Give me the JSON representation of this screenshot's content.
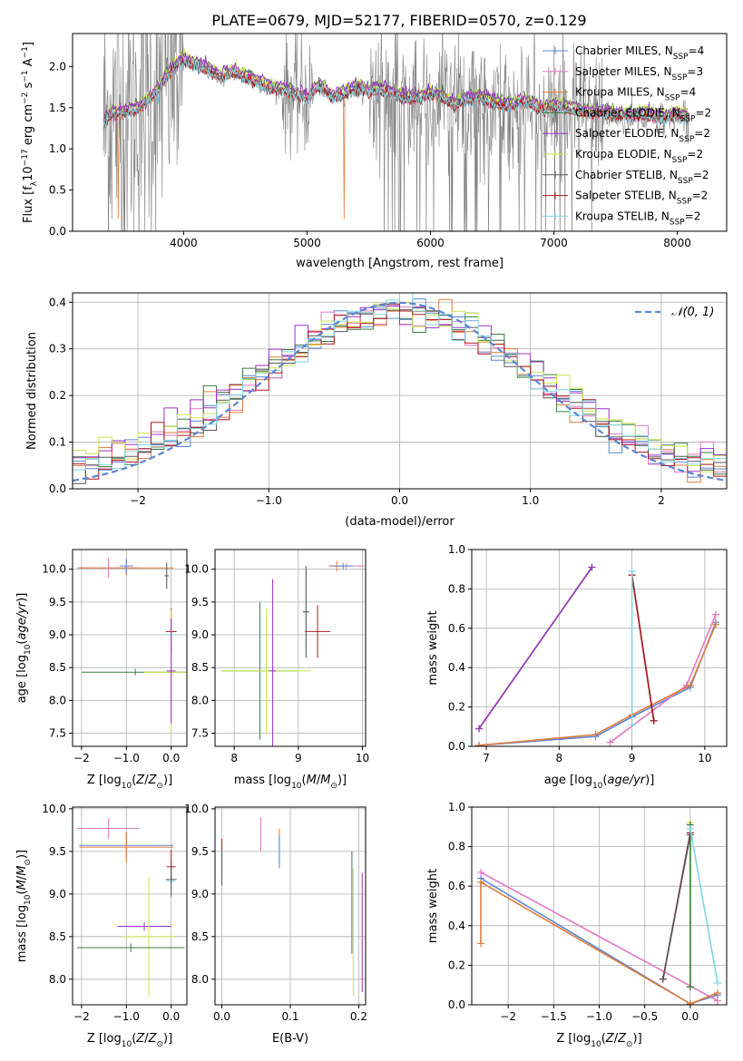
{
  "title": "PLATE=0679, MJD=52177, FIBERID=0570, z=0.129",
  "colors": {
    "chabrier_miles": "#5b86d6",
    "salpeter_miles": "#e377c2",
    "kroupa_miles": "#e07b39",
    "chabrier_elodie": "#3a7d44",
    "salpeter_elodie": "#9b30c8",
    "kroupa_elodie": "#c8e84a",
    "chabrier_stelib": "#555555",
    "salpeter_stelib": "#b0161e",
    "kroupa_stelib": "#7fd8e0",
    "data": "#808080",
    "normal": "#5b86d6"
  },
  "chart_data": [
    {
      "id": "spectrum",
      "type": "line",
      "xlabel": "wavelength [Angstrom, rest frame]",
      "ylabel": "Flux [f_λ 10^-17 erg cm^-2 s^-1 A^-1]",
      "xlim": [
        3100,
        8400
      ],
      "ylim": [
        0,
        2.4
      ],
      "xticks": [
        4000,
        5000,
        6000,
        7000,
        8000
      ],
      "yticks": [
        0.0,
        0.5,
        1.0,
        1.5,
        2.0
      ],
      "grid": false,
      "legend_loc": "upper right",
      "legend": [
        {
          "key": "chabrier_miles",
          "label": "Chabrier MILES, N",
          "sub": "SSP",
          "suffix": "=4"
        },
        {
          "key": "salpeter_miles",
          "label": "Salpeter MILES, N",
          "sub": "SSP",
          "suffix": "=3"
        },
        {
          "key": "kroupa_miles",
          "label": "Kroupa MILES, N",
          "sub": "SSP",
          "suffix": "=4"
        },
        {
          "key": "chabrier_elodie",
          "label": "Chabrier ELODIE, N",
          "sub": "SSP",
          "suffix": "=2"
        },
        {
          "key": "salpeter_elodie",
          "label": "Salpeter ELODIE, N",
          "sub": "SSP",
          "suffix": "=2"
        },
        {
          "key": "kroupa_elodie",
          "label": "Kroupa ELODIE, N",
          "sub": "SSP",
          "suffix": "=2"
        },
        {
          "key": "chabrier_stelib",
          "label": "Chabrier STELIB, N",
          "sub": "SSP",
          "suffix": "=2"
        },
        {
          "key": "salpeter_stelib",
          "label": "Salpeter STELIB, N",
          "sub": "SSP",
          "suffix": "=2"
        },
        {
          "key": "kroupa_stelib",
          "label": "Kroupa STELIB, N",
          "sub": "SSP",
          "suffix": "=2"
        }
      ],
      "continuum": {
        "x": [
          3350,
          3400,
          3500,
          3600,
          3700,
          3800,
          3900,
          4000,
          4100,
          4200,
          4300,
          4400,
          4500,
          4600,
          4700,
          4800,
          4900,
          5000,
          5100,
          5200,
          5300,
          5400,
          5500,
          5600,
          5700,
          5800,
          5900,
          6000,
          6100,
          6200,
          6300,
          6400,
          6500,
          6600,
          6700,
          6800,
          6900,
          7000,
          7100,
          7200,
          7300,
          7400,
          7500,
          7600,
          7700,
          7800,
          7900,
          8000,
          8100
        ],
        "y": [
          1.25,
          1.4,
          1.42,
          1.45,
          1.55,
          1.7,
          1.95,
          2.05,
          2.0,
          1.95,
          1.85,
          1.92,
          1.85,
          1.8,
          1.72,
          1.7,
          1.65,
          1.6,
          1.75,
          1.6,
          1.65,
          1.72,
          1.68,
          1.7,
          1.65,
          1.6,
          1.6,
          1.65,
          1.6,
          1.5,
          1.58,
          1.6,
          1.55,
          1.5,
          1.52,
          1.55,
          1.45,
          1.5,
          1.48,
          1.45,
          1.42,
          1.42,
          1.4,
          1.38,
          1.4,
          1.38,
          1.35,
          1.4,
          1.35
        ]
      }
    },
    {
      "id": "residuals",
      "type": "line",
      "xlabel": "(data-model)/error",
      "ylabel": "Normed distribution",
      "xlim": [
        -2.5,
        2.5
      ],
      "ylim": [
        0,
        0.42
      ],
      "xticks": [
        -2,
        -1,
        0,
        1,
        2
      ],
      "yticks": [
        0.0,
        0.1,
        0.2,
        0.3,
        0.4
      ],
      "grid": true,
      "legend_loc": "upper right",
      "normal_label": "𝒩(0, 1)",
      "bin_width": 0.1
    },
    {
      "id": "age_vs_Z",
      "type": "scatter",
      "xlabel": "Z [log10(Z/Z⊙)]",
      "ylabel": "age [log10(age/yr)]",
      "xlim": [
        -2.2,
        0.35
      ],
      "ylim": [
        7.3,
        10.3
      ],
      "xticks": [
        -2,
        -1,
        0
      ],
      "yticks": [
        7.5,
        8.0,
        8.5,
        9.0,
        9.5,
        10.0
      ],
      "grid": true,
      "points": [
        {
          "c": "salpeter_miles",
          "x": -1.4,
          "y": 10.02,
          "xe": 0.7,
          "ye": 0.15
        },
        {
          "c": "kroupa_miles",
          "x": -1.0,
          "y": 10.02,
          "xe": 1.05,
          "ye": 0.12
        },
        {
          "c": "chabrier_miles",
          "x": -1.0,
          "y": 10.05,
          "xe": 0.15,
          "ye": 0.12
        },
        {
          "c": "salpeter_stelib",
          "x": 0.0,
          "y": 9.05,
          "xe": 0.12,
          "ye": 0.35
        },
        {
          "c": "kroupa_stelib",
          "x": 0.0,
          "y": 9.0,
          "xe": 0.15,
          "ye": 0.2
        },
        {
          "c": "chabrier_stelib",
          "x": -0.1,
          "y": 9.9,
          "xe": 0.05,
          "ye": 0.2
        },
        {
          "c": "chabrier_elodie",
          "x": -0.8,
          "y": 8.43,
          "xe": 1.2,
          "ye": 0.05
        },
        {
          "c": "kroupa_elodie",
          "x": 0.0,
          "y": 8.43,
          "xe": 0.6,
          "ye": 0.95
        },
        {
          "c": "salpeter_elodie",
          "x": 0.0,
          "y": 8.45,
          "xe": 0.1,
          "ye": 0.8
        }
      ]
    },
    {
      "id": "age_vs_mass",
      "type": "scatter",
      "xlabel": "mass [log10(M/M⊙)]",
      "ylabel": "",
      "xlim": [
        7.7,
        10.05
      ],
      "ylim": [
        7.3,
        10.3
      ],
      "xticks": [
        8,
        9,
        10
      ],
      "yticks": [
        7.5,
        8.0,
        8.5,
        9.0,
        9.5,
        10.0
      ],
      "grid": true,
      "points": [
        {
          "c": "salpeter_miles",
          "x": 9.75,
          "y": 10.05,
          "xe": 0.28,
          "ye": 0.05
        },
        {
          "c": "kroupa_miles",
          "x": 9.6,
          "y": 10.05,
          "xe": 0.1,
          "ye": 0.08
        },
        {
          "c": "chabrier_miles",
          "x": 9.7,
          "y": 10.05,
          "xe": 0.15,
          "ye": 0.05
        },
        {
          "c": "salpeter_stelib",
          "x": 9.3,
          "y": 9.05,
          "xe": 0.2,
          "ye": 0.4
        },
        {
          "c": "kroupa_stelib",
          "x": 9.12,
          "y": 9.35,
          "xe": 0.05,
          "ye": 0.65
        },
        {
          "c": "chabrier_stelib",
          "x": 9.12,
          "y": 9.35,
          "xe": 0.05,
          "ye": 0.7
        },
        {
          "c": "chabrier_elodie",
          "x": 8.4,
          "y": 8.45,
          "xe": 0.6,
          "ye": 1.05
        },
        {
          "c": "kroupa_elodie",
          "x": 8.5,
          "y": 8.45,
          "xe": 0.7,
          "ye": 0.95
        },
        {
          "c": "salpeter_elodie",
          "x": 8.6,
          "y": 8.45,
          "xe": 0.05,
          "ye": 1.4
        }
      ]
    },
    {
      "id": "weight_vs_age",
      "type": "line",
      "xlabel": "age [log10(age/yr)]",
      "ylabel": "mass weight",
      "xlim": [
        6.8,
        10.3
      ],
      "ylim": [
        0,
        1.0
      ],
      "xticks": [
        7,
        8,
        9,
        10
      ],
      "yticks": [
        0.0,
        0.2,
        0.4,
        0.6,
        0.8,
        1.0
      ],
      "grid": true,
      "series": [
        {
          "c": "chabrier_miles",
          "x": [
            6.9,
            8.5,
            9.0,
            9.8,
            10.15
          ],
          "y": [
            0.005,
            0.05,
            0.15,
            0.3,
            0.63
          ]
        },
        {
          "c": "salpeter_miles",
          "x": [
            8.7,
            9.75,
            10.15
          ],
          "y": [
            0.02,
            0.31,
            0.67
          ]
        },
        {
          "c": "kroupa_miles",
          "x": [
            6.9,
            8.5,
            9.0,
            9.8,
            10.15
          ],
          "y": [
            0.005,
            0.06,
            0.16,
            0.31,
            0.62
          ]
        },
        {
          "c": "chabrier_elodie",
          "x": [
            6.9,
            8.45
          ],
          "y": [
            0.09,
            0.91
          ]
        },
        {
          "c": "kroupa_elodie",
          "x": [
            6.9,
            8.45
          ],
          "y": [
            0.09,
            0.91
          ]
        },
        {
          "c": "salpeter_elodie",
          "x": [
            6.9,
            8.45
          ],
          "y": [
            0.09,
            0.91
          ]
        },
        {
          "c": "chabrier_stelib",
          "x": [
            9.0,
            9.3
          ],
          "y": [
            0.87,
            0.13
          ]
        },
        {
          "c": "salpeter_stelib",
          "x": [
            9.0,
            9.3
          ],
          "y": [
            0.87,
            0.13
          ]
        },
        {
          "c": "kroupa_stelib",
          "x": [
            9.0,
            9.0
          ],
          "y": [
            0.89,
            0.11
          ]
        }
      ]
    },
    {
      "id": "mass_vs_Z",
      "type": "scatter",
      "xlabel": "Z [log10(Z/Z⊙)]",
      "ylabel": "mass [log10(M/M⊙)]",
      "xlim": [
        -2.2,
        0.35
      ],
      "ylim": [
        7.7,
        10.02
      ],
      "xticks": [
        -2,
        -1,
        0
      ],
      "yticks": [
        8.0,
        8.5,
        9.0,
        9.5,
        10.0
      ],
      "grid": true,
      "points": [
        {
          "c": "salpeter_miles",
          "x": -1.4,
          "y": 9.77,
          "xe": 0.7,
          "ye": 0.12
        },
        {
          "c": "chabrier_miles",
          "x": -1.0,
          "y": 9.57,
          "xe": 1.05,
          "ye": 0.15
        },
        {
          "c": "kroupa_miles",
          "x": -1.0,
          "y": 9.55,
          "xe": 1.05,
          "ye": 0.18
        },
        {
          "c": "salpeter_stelib",
          "x": 0.0,
          "y": 9.32,
          "xe": 0.1,
          "ye": 0.2
        },
        {
          "c": "kroupa_stelib",
          "x": 0.0,
          "y": 9.15,
          "xe": 0.1,
          "ye": 0.1
        },
        {
          "c": "chabrier_stelib",
          "x": 0.0,
          "y": 9.17,
          "xe": 0.12,
          "ye": 0.2
        },
        {
          "c": "salpeter_elodie",
          "x": -0.6,
          "y": 8.62,
          "xe": 0.6,
          "ye": 0.05
        },
        {
          "c": "kroupa_elodie",
          "x": -0.5,
          "y": 8.5,
          "xe": 0.6,
          "ye": 0.7
        },
        {
          "c": "chabrier_elodie",
          "x": -0.9,
          "y": 8.37,
          "xe": 1.2,
          "ye": 0.05
        }
      ]
    },
    {
      "id": "mass_vs_ebv",
      "type": "scatter",
      "xlabel": "E(B-V)",
      "ylabel": "",
      "xlim": [
        -0.01,
        0.21
      ],
      "ylim": [
        7.7,
        10.02
      ],
      "xticks": [
        0.0,
        0.1,
        0.2
      ],
      "yticks": [
        8.0,
        8.5,
        9.0,
        9.5,
        10.0
      ],
      "grid": true,
      "points": [
        {
          "c": "salpeter_miles",
          "x": 0.057,
          "y": 9.7,
          "xe": 0,
          "ye": 0.2
        },
        {
          "c": "kroupa_miles",
          "x": 0.084,
          "y": 9.55,
          "xe": 0,
          "ye": 0.22
        },
        {
          "c": "chabrier_miles",
          "x": 0.084,
          "y": 9.5,
          "xe": 0,
          "ye": 0.2
        },
        {
          "c": "salpeter_stelib",
          "x": 0.0,
          "y": 9.45,
          "xe": 0,
          "ye": 0.2
        },
        {
          "c": "kroupa_stelib",
          "x": 0.0,
          "y": 9.3,
          "xe": 0,
          "ye": 0.2
        },
        {
          "c": "chabrier_stelib",
          "x": 0.0,
          "y": 9.3,
          "xe": 0,
          "ye": 0.2
        },
        {
          "c": "chabrier_elodie",
          "x": 0.19,
          "y": 8.9,
          "xe": 0,
          "ye": 0.6
        },
        {
          "c": "kroupa_elodie",
          "x": 0.192,
          "y": 8.55,
          "xe": 0,
          "ye": 0.75
        },
        {
          "c": "salpeter_elodie",
          "x": 0.205,
          "y": 8.55,
          "xe": 0,
          "ye": 0.7
        }
      ]
    },
    {
      "id": "weight_vs_Z",
      "type": "line",
      "xlabel": "Z [log10(Z/Z⊙)]",
      "ylabel": "mass weight",
      "xlim": [
        -2.4,
        0.4
      ],
      "ylim": [
        0,
        1.0
      ],
      "xticks": [
        -2.0,
        -1.5,
        -1.0,
        -0.5,
        0.0
      ],
      "yticks": [
        0.0,
        0.2,
        0.4,
        0.6,
        0.8,
        1.0
      ],
      "grid": true,
      "series": [
        {
          "c": "chabrier_miles",
          "x": [
            -2.3,
            0.0,
            0.3
          ],
          "y": [
            0.64,
            0.005,
            0.05
          ]
        },
        {
          "c": "salpeter_miles",
          "x": [
            -2.3,
            0.3
          ],
          "y": [
            0.67,
            0.02
          ]
        },
        {
          "c": "kroupa_miles",
          "x": [
            -2.3,
            -2.3,
            0.0,
            0.3
          ],
          "y": [
            0.31,
            0.62,
            0.005,
            0.06
          ]
        },
        {
          "c": "kroupa_elodie",
          "x": [
            0.0,
            0.0
          ],
          "y": [
            0.09,
            0.92
          ]
        },
        {
          "c": "chabrier_elodie",
          "x": [
            0.0,
            0.0
          ],
          "y": [
            0.09,
            0.91
          ]
        },
        {
          "c": "salpeter_stelib",
          "x": [
            -0.3,
            0.0
          ],
          "y": [
            0.13,
            0.87
          ]
        },
        {
          "c": "chabrier_stelib",
          "x": [
            -0.3,
            0.0
          ],
          "y": [
            0.13,
            0.86
          ]
        },
        {
          "c": "kroupa_stelib",
          "x": [
            0.0,
            0.3
          ],
          "y": [
            0.89,
            0.11
          ]
        }
      ]
    }
  ]
}
